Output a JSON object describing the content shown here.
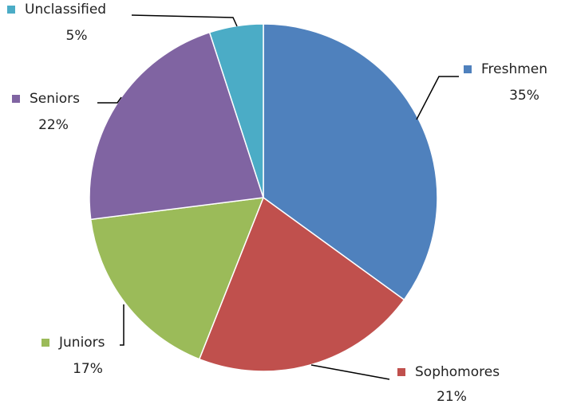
{
  "chart_data": {
    "type": "pie",
    "categories": [
      "Freshmen",
      "Sophomores",
      "Juniors",
      "Seniors",
      "Unclassified"
    ],
    "values": [
      35,
      21,
      17,
      22,
      5
    ],
    "value_labels": [
      "35%",
      "21%",
      "17%",
      "22%",
      "5%"
    ],
    "colors": [
      "#4f81bd",
      "#c0504d",
      "#9bbb59",
      "#8064a2",
      "#4bacc6"
    ]
  }
}
